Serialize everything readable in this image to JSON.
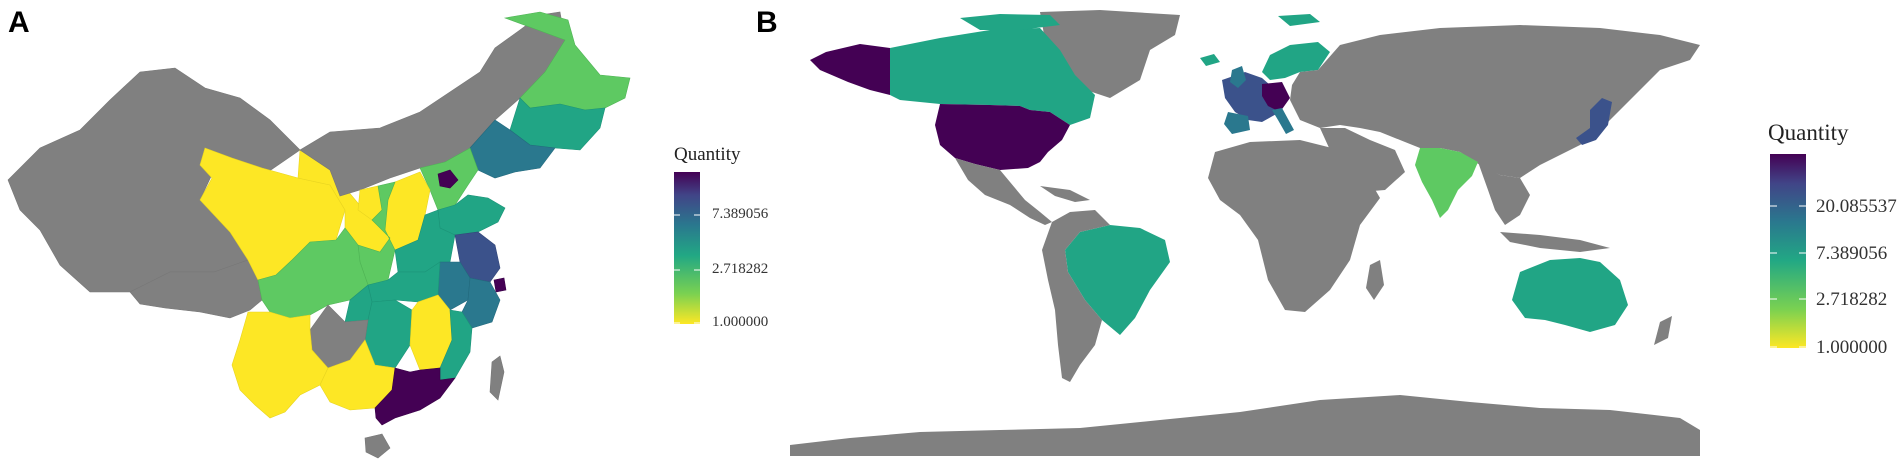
{
  "panels": [
    {
      "label": "A",
      "region": "China provinces",
      "legend": {
        "title": "Quantity",
        "ticks": [
          "7.389056",
          "2.718282",
          "1.000000"
        ],
        "colors": [
          "#fde725",
          "#7ad151",
          "#22a884",
          "#2a788e",
          "#414487",
          "#440154"
        ]
      }
    },
    {
      "label": "B",
      "region": "World countries",
      "legend": {
        "title": "Quantity",
        "ticks": [
          "20.085537",
          "7.389056",
          "2.718282",
          "1.000000"
        ],
        "colors": [
          "#fde725",
          "#7ad151",
          "#22a884",
          "#2a788e",
          "#414487",
          "#440154"
        ]
      }
    }
  ],
  "colors": {
    "no_data": "#808080",
    "level_1": "#fde725",
    "level_2": "#5ec962",
    "level_3": "#21a585",
    "level_4": "#2a788e",
    "level_5": "#3b528b",
    "level_6": "#440154"
  }
}
